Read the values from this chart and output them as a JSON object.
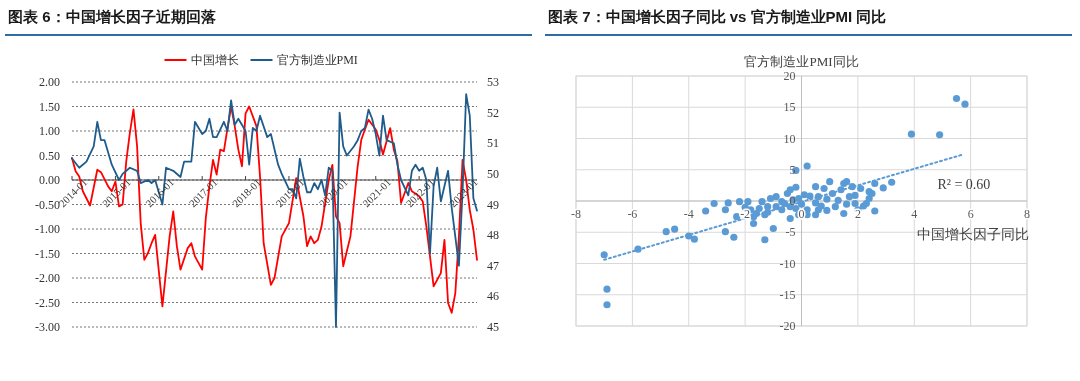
{
  "chart_data": [
    {
      "type": "line",
      "title": "图表 6：中国增长因子近期回落",
      "series": [
        {
          "name": "中国增长",
          "color": "#ff0000",
          "x": [
            "2014-01",
            "2014-02",
            "2014-03",
            "2014-04",
            "2014-06",
            "2014-08",
            "2014-09",
            "2014-11",
            "2014-12",
            "2015-01",
            "2015-02",
            "2015-03",
            "2015-04",
            "2015-05",
            "2015-06",
            "2015-07",
            "2015-08",
            "2015-09",
            "2015-10",
            "2015-11",
            "2015-12",
            "2016-02",
            "2016-04",
            "2016-05",
            "2016-06",
            "2016-07",
            "2016-09",
            "2016-10",
            "2016-11",
            "2017-01",
            "2017-02",
            "2017-03",
            "2017-04",
            "2017-05",
            "2017-06",
            "2017-07",
            "2017-08",
            "2017-09",
            "2017-10",
            "2017-11",
            "2017-12",
            "2018-01",
            "2018-02",
            "2018-04",
            "2018-05",
            "2018-06",
            "2018-08",
            "2018-09",
            "2018-11",
            "2019-01",
            "2019-03",
            "2019-05",
            "2019-06",
            "2019-07",
            "2019-08",
            "2019-09",
            "2019-10",
            "2019-12",
            "2020-01",
            "2020-02",
            "2020-03",
            "2020-04",
            "2020-06",
            "2020-08",
            "2020-09",
            "2020-10",
            "2020-11",
            "2021-01",
            "2021-02",
            "2021-03",
            "2021-05",
            "2021-06",
            "2021-07",
            "2021-08",
            "2021-10",
            "2021-11",
            "2022-01",
            "2022-02",
            "2022-03",
            "2022-05",
            "2022-07",
            "2022-08",
            "2022-09",
            "2022-10",
            "2022-11",
            "2022-12",
            "2023-01",
            "2023-02",
            "2023-03",
            "2023-04",
            "2023-05"
          ],
          "values": [
            0.45,
            0.18,
            0.07,
            -0.23,
            -0.52,
            0.21,
            0.16,
            -0.13,
            -0.23,
            -0.03,
            -0.54,
            -0.5,
            0.38,
            0.96,
            1.44,
            0.69,
            -0.88,
            -1.63,
            -1.49,
            -1.29,
            -1.12,
            -2.58,
            -1.15,
            -0.64,
            -1.35,
            -1.83,
            -1.39,
            -1.29,
            -1.56,
            -1.83,
            -0.78,
            -0.13,
            0.41,
            0.11,
            0.62,
            0.59,
            1.06,
            1.5,
            1.1,
            0.62,
            0.28,
            1.36,
            1.5,
            1.1,
            0.07,
            -1.29,
            -2.14,
            -2.0,
            -1.15,
            -0.88,
            0.04,
            -0.74,
            -1.35,
            -1.15,
            -1.29,
            -1.22,
            -0.95,
            0.0,
            0.31,
            -0.74,
            -0.88,
            -1.76,
            -1.15,
            0.28,
            0.82,
            1.03,
            1.23,
            1.03,
            0.82,
            0.52,
            1.06,
            0.62,
            0.38,
            -0.47,
            -0.06,
            -0.23,
            -0.33,
            -0.44,
            -0.95,
            -2.17,
            -1.9,
            -1.22,
            -2.51,
            -2.71,
            -2.31,
            -1.15,
            0.41,
            0.0,
            -0.61,
            -1.01,
            -1.63
          ]
        },
        {
          "name": "官方制造业PMI",
          "color": "#1f5c8b",
          "axis": "y2",
          "x": [
            "2014-01",
            "2014-03",
            "2014-05",
            "2014-07",
            "2014-08",
            "2014-09",
            "2014-10",
            "2014-12",
            "2015-02",
            "2015-03",
            "2015-05",
            "2015-07",
            "2015-08",
            "2015-10",
            "2015-11",
            "2015-12",
            "2016-01",
            "2016-02",
            "2016-03",
            "2016-05",
            "2016-07",
            "2016-08",
            "2016-10",
            "2016-11",
            "2017-01",
            "2017-02",
            "2017-03",
            "2017-04",
            "2017-05",
            "2017-07",
            "2017-08",
            "2017-09",
            "2017-10",
            "2017-11",
            "2018-01",
            "2018-02",
            "2018-03",
            "2018-04",
            "2018-05",
            "2018-07",
            "2018-08",
            "2018-10",
            "2018-11",
            "2019-01",
            "2019-02",
            "2019-03",
            "2019-04",
            "2019-05",
            "2019-06",
            "2019-07",
            "2019-08",
            "2019-09",
            "2019-10",
            "2019-11",
            "2019-12",
            "2020-01",
            "2020-02",
            "2020-03",
            "2020-04",
            "2020-05",
            "2020-07",
            "2020-08",
            "2020-09",
            "2020-10",
            "2020-11",
            "2020-12",
            "2021-01",
            "2021-02",
            "2021-03",
            "2021-04",
            "2021-06",
            "2021-07",
            "2021-08",
            "2021-10",
            "2021-11",
            "2021-12",
            "2022-01",
            "2022-02",
            "2022-03",
            "2022-04",
            "2022-05",
            "2022-06",
            "2022-07",
            "2022-09",
            "2022-10",
            "2022-12",
            "2023-01",
            "2023-02",
            "2023-03",
            "2023-04",
            "2023-05"
          ],
          "values": [
            50.5,
            50.2,
            50.4,
            50.9,
            51.7,
            51.1,
            51.1,
            50.3,
            49.8,
            50.0,
            50.2,
            50.1,
            49.7,
            49.8,
            49.7,
            49.8,
            49.4,
            49.0,
            50.2,
            50.1,
            49.9,
            50.4,
            50.4,
            51.7,
            51.3,
            51.4,
            51.8,
            51.2,
            51.2,
            51.7,
            51.4,
            52.4,
            51.6,
            51.8,
            51.4,
            50.3,
            51.5,
            51.4,
            51.9,
            51.2,
            51.3,
            50.3,
            50.0,
            49.5,
            49.5,
            49.2,
            50.5,
            49.9,
            49.4,
            49.4,
            49.7,
            49.5,
            49.8,
            49.3,
            50.2,
            50.1,
            45.0,
            52.0,
            50.9,
            50.6,
            50.9,
            51.1,
            51.4,
            51.5,
            52.1,
            51.8,
            51.3,
            50.6,
            51.9,
            51.1,
            51.0,
            50.3,
            49.8,
            49.3,
            50.1,
            50.3,
            50.1,
            50.2,
            49.8,
            47.4,
            49.6,
            50.2,
            49.1,
            50.1,
            48.9,
            47.0,
            49.4,
            52.6,
            51.9,
            49.2,
            48.8
          ]
        }
      ],
      "xlim": [
        "2014-01",
        "2023-05"
      ],
      "xticks": [
        "2014-01",
        "2015-01",
        "2016-01",
        "2017-01",
        "2018-01",
        "2019-01",
        "2020-01",
        "2021-01",
        "2022-01",
        "2023-01"
      ],
      "ylim": [
        -3,
        2
      ],
      "yticks": [
        {
          "value": 2,
          "label": "2.00"
        },
        {
          "value": 1.5,
          "label": "1.50"
        },
        {
          "value": 1,
          "label": "1.00"
        },
        {
          "value": 0.5,
          "label": "0.50"
        },
        {
          "value": 0,
          "label": "0.00"
        },
        {
          "value": -0.5,
          "label": "-0.50"
        },
        {
          "value": -1,
          "label": "-1.00"
        },
        {
          "value": -1.5,
          "label": "-1.50"
        },
        {
          "value": -2,
          "label": "-2.00"
        },
        {
          "value": -2.5,
          "label": "-2.50"
        },
        {
          "value": -3,
          "label": "-3.00"
        }
      ],
      "y2lim": [
        45,
        53
      ],
      "y2ticks": [
        45,
        46,
        47,
        48,
        49,
        50,
        51,
        52,
        53
      ],
      "grid": "y",
      "legend": "top"
    },
    {
      "type": "scatter",
      "title": "图表 7：中国增长因子同比 vs 官方制造业PMI 同比",
      "xlabel": "中国增长因子同比",
      "ylabel": "官方制造业PMI同比",
      "series": [
        {
          "color": "#5b9bd5",
          "x": [
            -7.0,
            -6.9,
            -6.9,
            -5.8,
            -4.8,
            -4.5,
            -4.0,
            -3.8,
            -3.4,
            -3.1,
            -2.7,
            -2.7,
            -2.6,
            -2.4,
            -2.3,
            -2.2,
            -1.9,
            -1.8,
            -1.7,
            -1.7,
            -1.6,
            -1.4,
            -1.3,
            -1.3,
            -1.2,
            -1.1,
            -1.0,
            -0.9,
            -0.9,
            -0.7,
            -0.7,
            -0.4,
            -0.4,
            -0.5,
            -0.4,
            -0.2,
            -0.2,
            -0.1,
            -0.1,
            0.2,
            0.2,
            0.2,
            0.5,
            0.6,
            0.5,
            0.8,
            0.6,
            1.0,
            1.2,
            1.5,
            1.4,
            1.5,
            1.6,
            1.7,
            1.8,
            1.9,
            2.0,
            2.1,
            2.3,
            2.4,
            2.4,
            2.5,
            2.6,
            2.6,
            2.9,
            3.2,
            3.9,
            4.9,
            5.5,
            5.8,
            -0.3,
            0.0,
            0.3,
            0.5,
            0.9,
            1.1,
            1.3,
            0.7,
            -0.6,
            -1.5,
            -2.0,
            -1.2,
            0.1,
            1.6,
            2.2,
            -0.2,
            0.9,
            1.9
          ],
          "values": [
            -8.6,
            -14.1,
            -16.6,
            -7.7,
            -4.9,
            -4.5,
            -5.6,
            -6.1,
            -1.6,
            -0.4,
            -1.4,
            -4.9,
            -0.3,
            -5.8,
            -2.5,
            -0.1,
            -0.1,
            -1.4,
            -2.5,
            -3.6,
            -2.0,
            -0.1,
            -6.2,
            -2.2,
            -0.9,
            0.4,
            -4.4,
            0.7,
            -0.9,
            -0.1,
            -1.4,
            -2.8,
            -0.9,
            1.2,
            1.8,
            4.9,
            2.2,
            0.4,
            -2.2,
            5.6,
            -1.4,
            -2.2,
            -2.2,
            -1.4,
            2.3,
            2.0,
            0.7,
            3.1,
            -0.9,
            -2.0,
            1.8,
            2.8,
            3.1,
            0.7,
            2.3,
            -0.4,
            -1.4,
            2.0,
            -0.4,
            1.5,
            0.4,
            1.2,
            -1.6,
            2.8,
            2.1,
            3.0,
            10.7,
            10.6,
            16.4,
            15.5,
            0.2,
            -0.5,
            0.8,
            -0.3,
            0.3,
            1.2,
            0.1,
            -0.8,
            -0.4,
            -1.2,
            -1.0,
            -1.8,
            1.0,
            -0.5,
            -0.8,
            -1.2,
            -1.5,
            0.9
          ]
        },
        {
          "type": "line",
          "line_style": "dotted",
          "color": "#5b9bd5",
          "x": [
            -7.0,
            5.7
          ],
          "values": [
            -9.4,
            7.4
          ]
        }
      ],
      "xlim": [
        -8,
        8
      ],
      "xticks": [
        -8,
        -6,
        -4,
        -2,
        0,
        2,
        4,
        6,
        8
      ],
      "ylim": [
        -20,
        20
      ],
      "yticks": [
        -20,
        -15,
        -10,
        -5,
        0,
        5,
        10,
        15,
        20
      ],
      "grid": true,
      "annotations": [
        "R² = 0.60"
      ]
    }
  ]
}
